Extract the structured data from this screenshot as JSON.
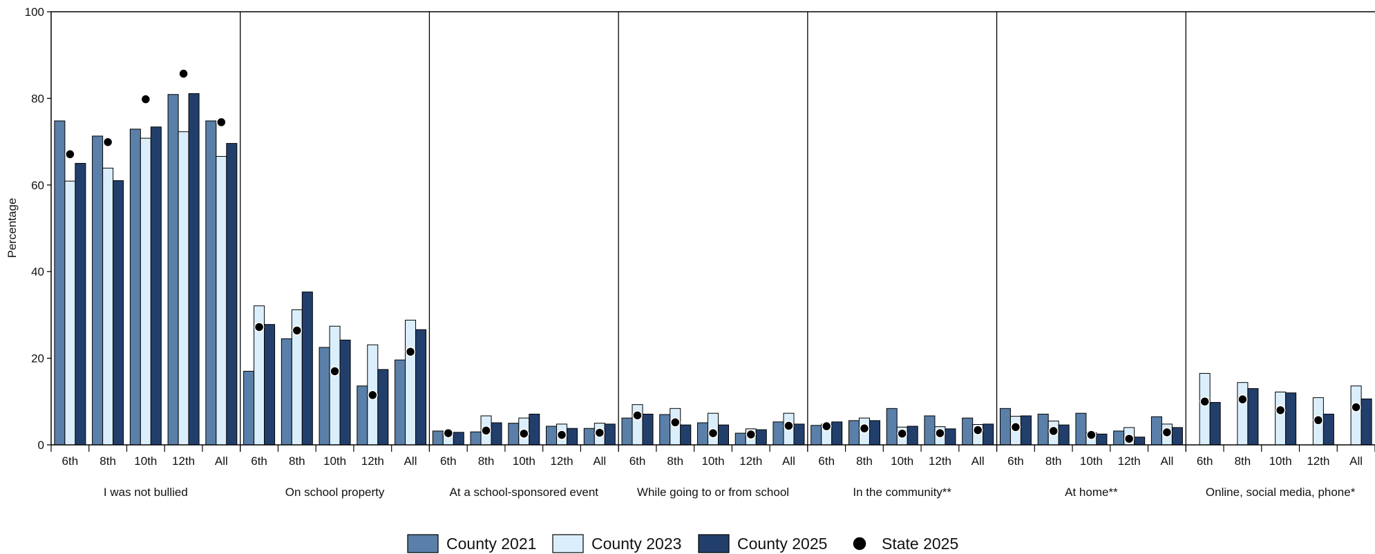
{
  "chart_data": {
    "type": "bar",
    "ylabel": "Percentage",
    "ylim": [
      0,
      100
    ],
    "yticks": [
      0,
      20,
      40,
      60,
      80,
      100
    ],
    "grades": [
      "6th",
      "8th",
      "10th",
      "12th",
      "All"
    ],
    "groups": [
      "I was not bullied",
      "On school property",
      "At a school-sponsored event",
      "While going to or from school",
      "In the community**",
      "At home**",
      "Online, social media, phone*"
    ],
    "series": [
      {
        "name": "County 2021",
        "kind": "bar",
        "color": "#5a7fa8",
        "values": [
          [
            74.8,
            71.3,
            72.9,
            80.9,
            74.8
          ],
          [
            17.0,
            24.5,
            22.5,
            13.6,
            19.6
          ],
          [
            3.2,
            3.0,
            5.0,
            4.3,
            3.8
          ],
          [
            6.2,
            7.0,
            5.1,
            2.7,
            5.3
          ],
          [
            4.5,
            5.6,
            8.4,
            6.7,
            6.2
          ],
          [
            8.4,
            7.1,
            7.3,
            3.2,
            6.5
          ],
          [
            null,
            null,
            null,
            null,
            null
          ]
        ]
      },
      {
        "name": "County 2023",
        "kind": "bar",
        "color": "#dbeefb",
        "values": [
          [
            60.9,
            63.9,
            70.8,
            72.3,
            66.6
          ],
          [
            32.1,
            31.2,
            27.4,
            23.1,
            28.8
          ],
          [
            2.8,
            6.7,
            6.2,
            4.8,
            5.0
          ],
          [
            9.3,
            8.4,
            7.3,
            3.7,
            7.3
          ],
          [
            4.8,
            6.2,
            4.1,
            4.2,
            4.7
          ],
          [
            6.6,
            5.5,
            2.8,
            4.0,
            4.8
          ],
          [
            16.5,
            14.4,
            12.2,
            10.9,
            13.6
          ]
        ]
      },
      {
        "name": "County 2025",
        "kind": "bar",
        "color": "#223f6c",
        "values": [
          [
            65.0,
            61.0,
            73.4,
            81.1,
            69.6
          ],
          [
            27.8,
            35.3,
            24.2,
            17.4,
            26.6
          ],
          [
            2.9,
            5.1,
            7.1,
            3.8,
            4.8
          ],
          [
            7.1,
            4.6,
            4.6,
            3.5,
            4.8
          ],
          [
            5.3,
            5.6,
            4.3,
            3.7,
            4.8
          ],
          [
            6.7,
            4.6,
            2.5,
            1.8,
            4.0
          ],
          [
            9.8,
            13.0,
            12.0,
            7.1,
            10.6
          ]
        ]
      },
      {
        "name": "State 2025",
        "kind": "dot",
        "color": "#000000",
        "values": [
          [
            67.1,
            69.9,
            79.8,
            85.7,
            74.5
          ],
          [
            27.2,
            26.4,
            17.0,
            11.5,
            21.5
          ],
          [
            2.7,
            3.3,
            2.6,
            2.3,
            2.8
          ],
          [
            6.8,
            5.2,
            2.7,
            2.4,
            4.4
          ],
          [
            4.3,
            3.8,
            2.6,
            2.7,
            3.4
          ],
          [
            4.1,
            3.2,
            2.3,
            1.4,
            2.9
          ],
          [
            10.0,
            10.5,
            8.0,
            5.7,
            8.7
          ]
        ]
      }
    ]
  }
}
